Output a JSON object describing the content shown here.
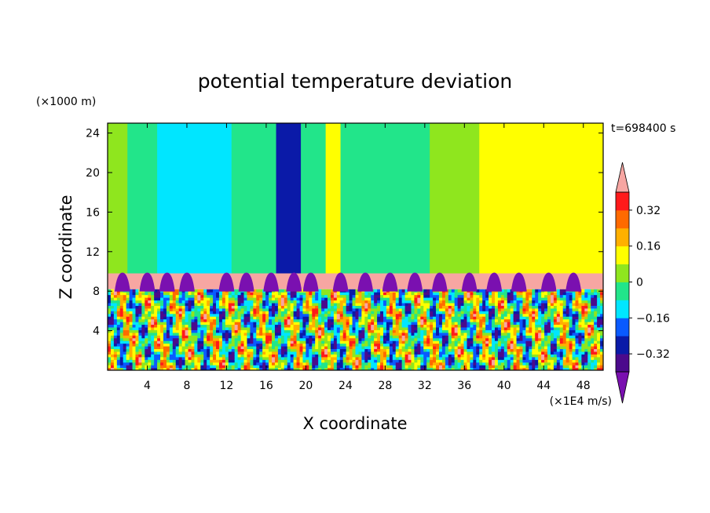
{
  "chart_data": {
    "type": "heatmap",
    "title": "potential temperature deviation",
    "xlabel": "X coordinate",
    "ylabel": "Z coordinate",
    "x_unit": "(×1E4 m/s)",
    "y_unit": "(×1000 m)",
    "time_label": "t=698400 s",
    "xlim": [
      0,
      50
    ],
    "ylim": [
      0,
      25
    ],
    "x_ticks": [
      4,
      8,
      12,
      16,
      20,
      24,
      28,
      32,
      36,
      40,
      44,
      48
    ],
    "y_ticks": [
      4,
      8,
      12,
      16,
      20,
      24
    ],
    "x_tick_labels": [
      "4",
      "8",
      "12",
      "16",
      "20",
      "24",
      "28",
      "32",
      "36",
      "40",
      "44",
      "48"
    ],
    "y_tick_labels": [
      "4",
      "8",
      "12",
      "16",
      "20",
      "24"
    ],
    "colorbar": {
      "levels": [
        -0.4,
        -0.32,
        -0.24,
        -0.16,
        -0.08,
        0,
        0.08,
        0.16,
        0.24,
        0.32,
        0.4
      ],
      "tick_values": [
        0.32,
        0.16,
        0,
        -0.16,
        -0.32
      ],
      "tick_labels": [
        "0.32",
        "0.16",
        "0",
        "−0.16",
        "−0.32"
      ],
      "colors": [
        "#4b0a8c",
        "#0a1aa8",
        "#0a5aff",
        "#00e6ff",
        "#22e58a",
        "#8fe61e",
        "#ffff00",
        "#ffb000",
        "#ff6a00",
        "#ff1a1a"
      ],
      "under_color": "#7a10b0",
      "over_color": "#f7a6a2"
    },
    "bands": {
      "upper_ranges": [
        {
          "x": [
            0,
            2
          ],
          "level": 0.04
        },
        {
          "x": [
            2,
            5
          ],
          "level": -0.04
        },
        {
          "x": [
            5,
            12.5
          ],
          "level": -0.12
        },
        {
          "x": [
            12.5,
            17
          ],
          "level": -0.04
        },
        {
          "x": [
            17,
            19.5
          ],
          "level": -0.28
        },
        {
          "x": [
            19.5,
            22
          ],
          "level": -0.04
        },
        {
          "x": [
            22,
            23.5
          ],
          "level": 0.12
        },
        {
          "x": [
            23.5,
            32.5
          ],
          "level": -0.04
        },
        {
          "x": [
            32.5,
            37.5
          ],
          "level": 0.04
        },
        {
          "x": [
            37.5,
            44
          ],
          "level": 0.12
        },
        {
          "x": [
            44,
            50
          ],
          "level": 0.12
        }
      ],
      "inversion_layer": {
        "z": [
          8.2,
          9.8
        ],
        "level": 0.45
      },
      "boundary_bumps_x": [
        1.5,
        4,
        6,
        8,
        12,
        14,
        16.5,
        18.8,
        20.5,
        23.5,
        26,
        28.5,
        31,
        33.5,
        36.5,
        39,
        41.5,
        44.5,
        47
      ],
      "boundary_bump_level": -0.45,
      "lower_layer": {
        "z": [
          0,
          8.2
        ],
        "pattern": "turbulent",
        "value_range": [
          -0.4,
          0.4
        ]
      }
    }
  }
}
